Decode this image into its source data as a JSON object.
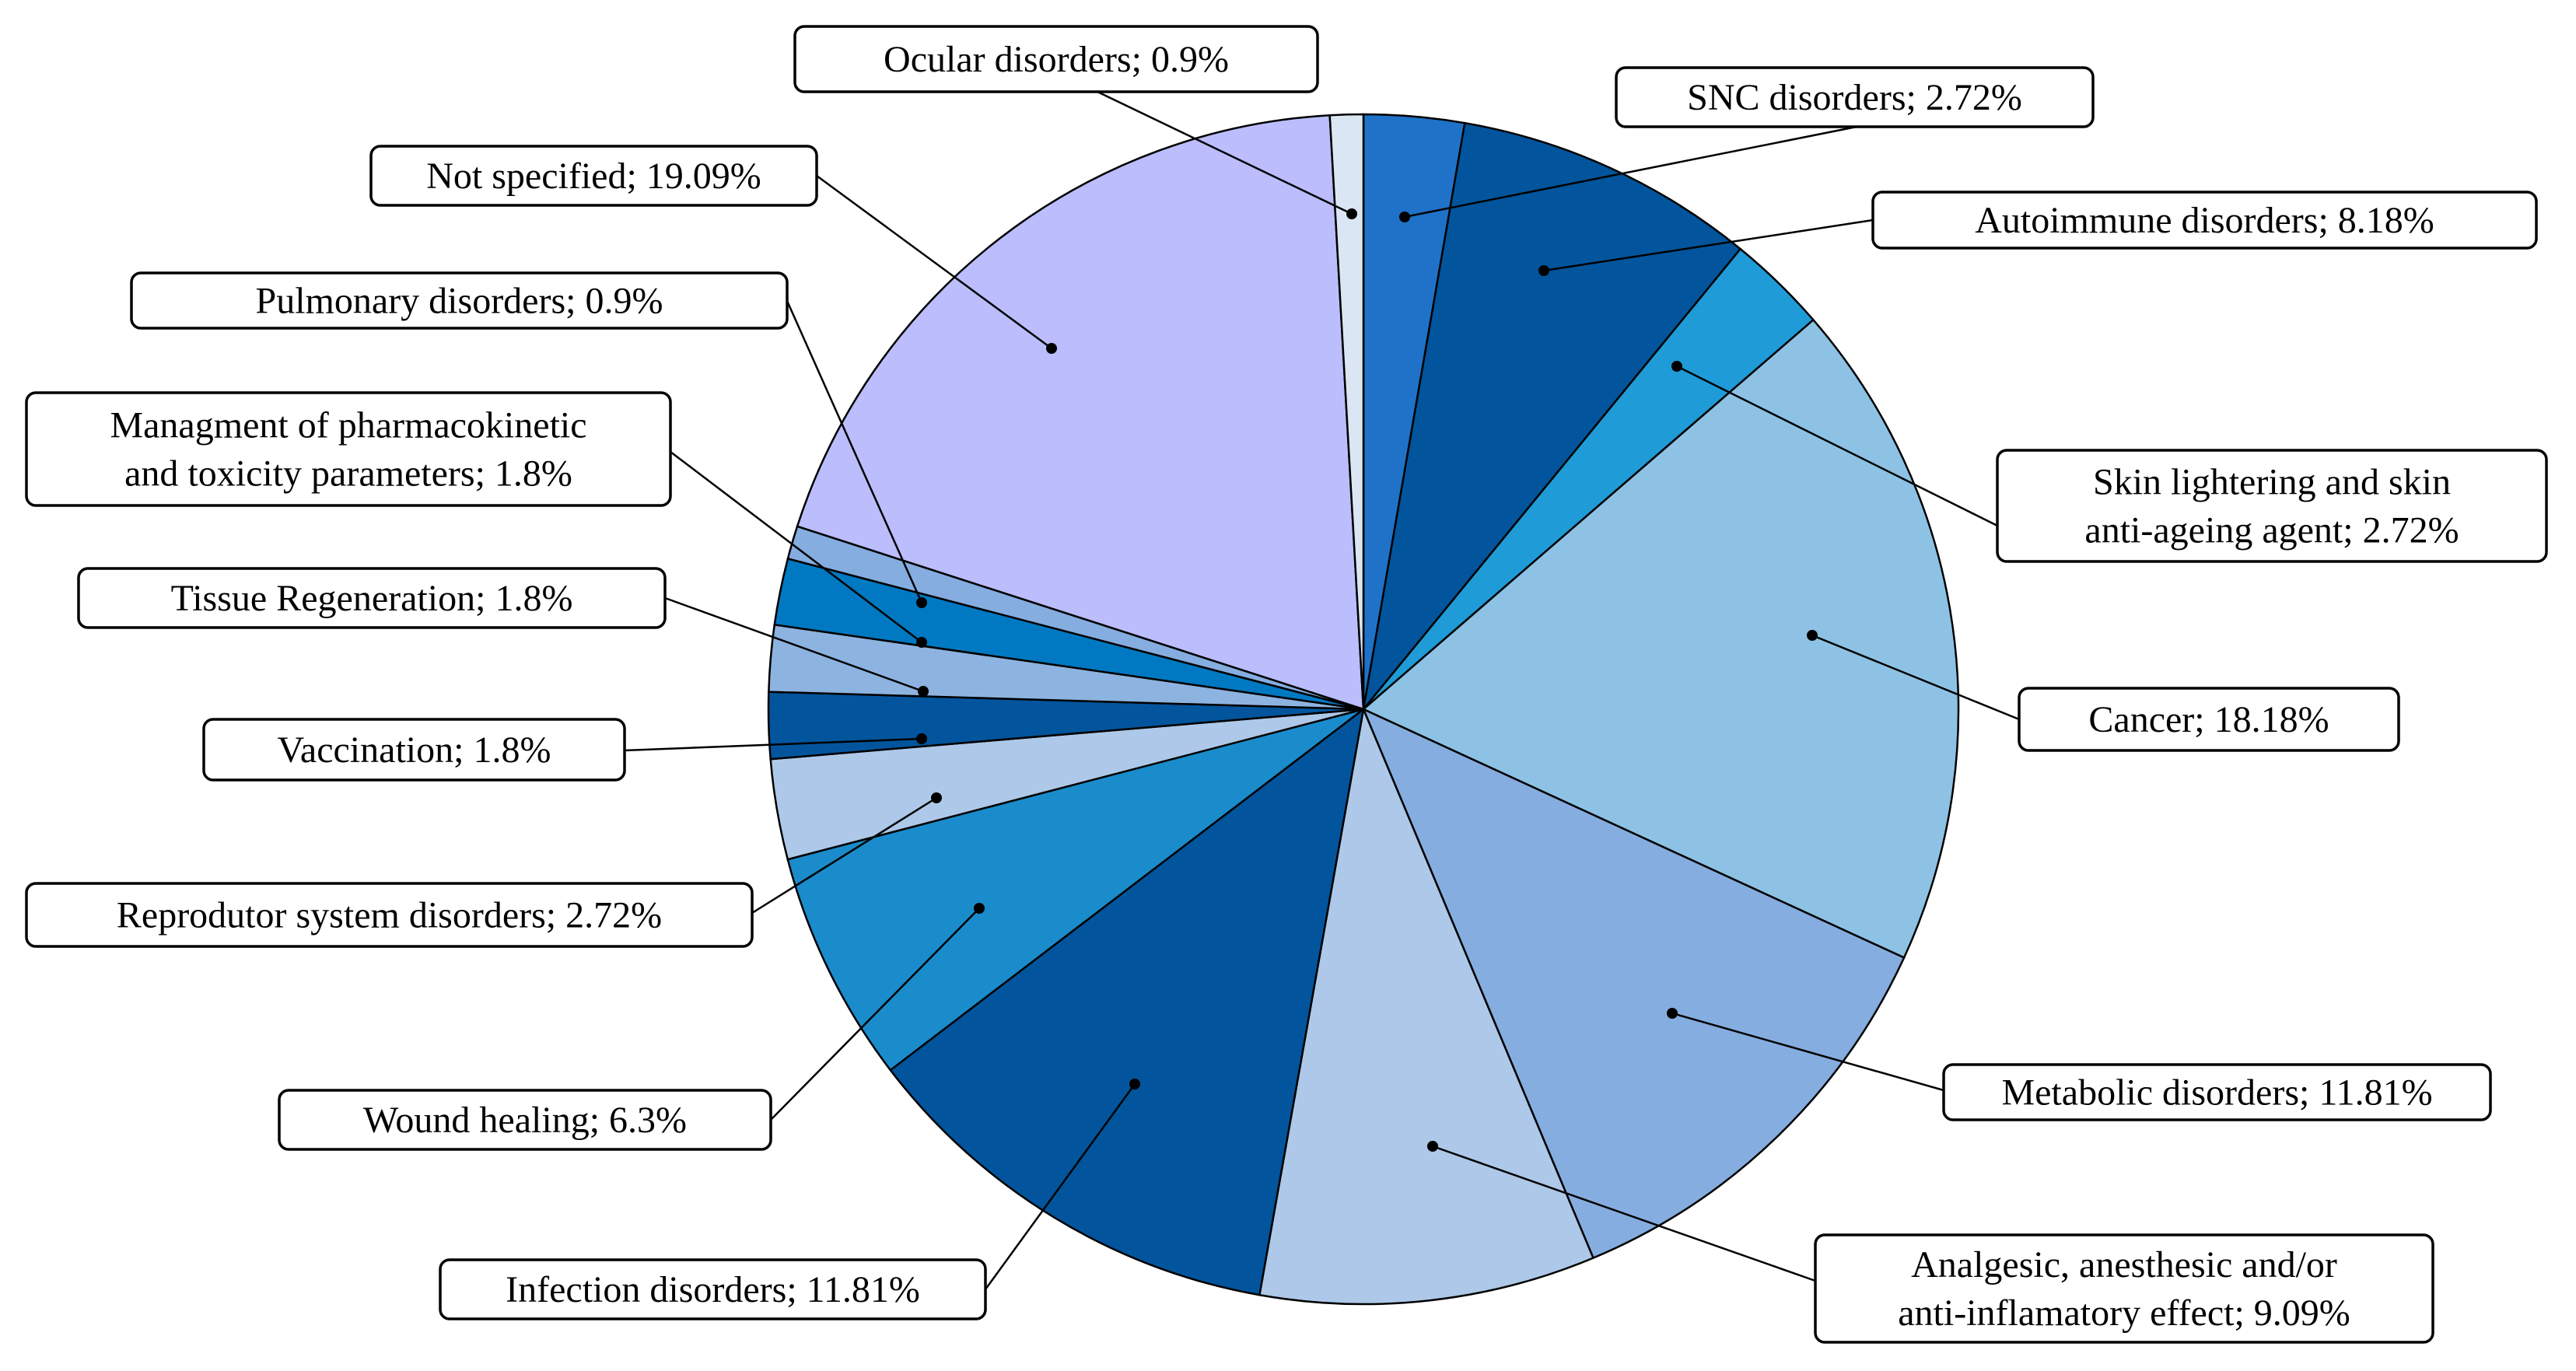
{
  "chart_data": {
    "type": "pie",
    "title": "",
    "start": "12 o'clock, clockwise",
    "legend": "none (callout labels)",
    "slices": [
      {
        "label": "SNC disorders",
        "value": 2.72,
        "color": "#1f72c8",
        "text": [
          "SNC disorders; 2.72%"
        ]
      },
      {
        "label": "Autoimmune disorders",
        "value": 8.18,
        "color": "#02559c",
        "text": [
          "Autoimmune disorders; 8.18%"
        ]
      },
      {
        "label": "Skin lightering and skin anti-ageing agent",
        "value": 2.72,
        "color": "#1f9bd7",
        "text": [
          "Skin lightering and skin",
          "anti-ageing agent; 2.72%"
        ]
      },
      {
        "label": "Cancer",
        "value": 18.18,
        "color": "#8dc2e5",
        "text": [
          "Cancer; 18.18%"
        ]
      },
      {
        "label": "Metabolic disorders",
        "value": 11.81,
        "color": "#85addf",
        "text": [
          "Metabolic disorders; 11.81%"
        ]
      },
      {
        "label": "Analgesic, anesthesic and/or anti-inflamatory effect",
        "value": 9.09,
        "color": "#adc8e8",
        "text": [
          "Analgesic, anesthesic and/or",
          "anti-inflamatory effect; 9.09%"
        ]
      },
      {
        "label": "Infection disorders",
        "value": 11.81,
        "color": "#02559c",
        "text": [
          "Infection disorders; 11.81%"
        ]
      },
      {
        "label": "Wound healing",
        "value": 6.3,
        "color": "#1a8ccb",
        "text": [
          "Wound healing; 6.3%"
        ]
      },
      {
        "label": "Reprodutor system disorders",
        "value": 2.72,
        "color": "#adc8e8",
        "text": [
          "Reprodutor system disorders; 2.72%"
        ]
      },
      {
        "label": "Vaccination",
        "value": 1.8,
        "color": "#02559c",
        "text": [
          "Vaccination; 1.8%"
        ]
      },
      {
        "label": "Tissue Regeneration",
        "value": 1.8,
        "color": "#8db3e0",
        "text": [
          "Tissue Regeneration; 1.8%"
        ]
      },
      {
        "label": "Managment of pharmacokinetic and toxicity parameters",
        "value": 1.8,
        "color": "#0079c2",
        "text": [
          "Managment of pharmacokinetic",
          "and toxicity parameters; 1.8%"
        ]
      },
      {
        "label": "Pulmonary disorders",
        "value": 0.9,
        "color": "#85addf",
        "text": [
          "Pulmonary disorders; 0.9%"
        ]
      },
      {
        "label": "Not specified",
        "value": 19.09,
        "color": "#bbbdfc",
        "text": [
          "Not specified; 19.09%"
        ]
      },
      {
        "label": "Ocular disorders",
        "value": 0.9,
        "color": "#dbe6f4",
        "text": [
          "Ocular disorders; 0.9%"
        ]
      }
    ]
  }
}
